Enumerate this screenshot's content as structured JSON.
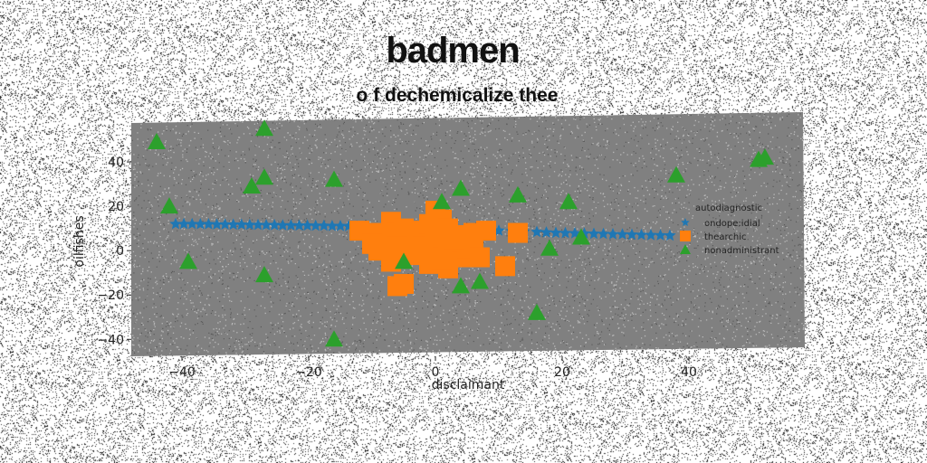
{
  "chart_data": {
    "type": "scatter",
    "title": "badmen",
    "subtitle": "o f dechemicalize thee",
    "xlabel": "disclaimant",
    "ylabel": "oilfishes",
    "xlim": [
      -48,
      58
    ],
    "ylim": [
      -46,
      60
    ],
    "xticks": [
      -40,
      -20,
      0,
      20,
      40
    ],
    "yticks": [
      -40,
      -20,
      0,
      20,
      40
    ],
    "grid": false,
    "legend": {
      "title": "autodiagnostic",
      "placement": "right"
    },
    "series": [
      {
        "name": "ondope:idial",
        "marker": "star",
        "color": "#1f77b4",
        "points": [
          [
            -41,
            12
          ],
          [
            -39.7,
            12
          ],
          [
            -38.4,
            12
          ],
          [
            -37.1,
            11.9
          ],
          [
            -35.8,
            11.9
          ],
          [
            -34.5,
            11.8
          ],
          [
            -33.2,
            11.8
          ],
          [
            -31.9,
            11.7
          ],
          [
            -30.6,
            11.7
          ],
          [
            -29.3,
            11.6
          ],
          [
            -28,
            11.6
          ],
          [
            -26.7,
            11.5
          ],
          [
            -25.4,
            11.5
          ],
          [
            -24.1,
            11.4
          ],
          [
            -22.8,
            11.4
          ],
          [
            -21.5,
            11.3
          ],
          [
            -20.2,
            11.3
          ],
          [
            -18.9,
            11.2
          ],
          [
            -17.6,
            11.2
          ],
          [
            -16.3,
            11.1
          ],
          [
            -15,
            11.1
          ],
          [
            -13.7,
            11
          ],
          [
            -12.4,
            11
          ],
          [
            -11.1,
            10.9
          ],
          [
            5.5,
            9.5
          ],
          [
            8,
            9.2
          ],
          [
            10,
            9
          ],
          [
            12,
            8.8
          ],
          [
            14,
            8.6
          ],
          [
            16,
            8.4
          ],
          [
            17.5,
            8.2
          ],
          [
            19,
            8
          ],
          [
            20.5,
            7.9
          ],
          [
            22,
            7.8
          ],
          [
            23.5,
            7.7
          ],
          [
            25,
            7.6
          ],
          [
            26.5,
            7.5
          ],
          [
            28,
            7.4
          ],
          [
            29.5,
            7.3
          ],
          [
            31,
            7.2
          ],
          [
            32.5,
            7.1
          ],
          [
            34,
            7.0
          ],
          [
            35.5,
            6.9
          ],
          [
            37,
            6.8
          ]
        ]
      },
      {
        "name": "thearchic",
        "marker": "square",
        "color": "#ff7f0e",
        "points": [
          [
            -12,
            9
          ],
          [
            -10,
            8
          ],
          [
            -8,
            7
          ],
          [
            -7,
            13
          ],
          [
            -6,
            8
          ],
          [
            -5,
            10
          ],
          [
            -4,
            4
          ],
          [
            -3,
            6
          ],
          [
            -2,
            9
          ],
          [
            -1,
            12
          ],
          [
            0,
            18
          ],
          [
            1,
            14
          ],
          [
            0,
            4
          ],
          [
            -1,
            -3
          ],
          [
            -3,
            -2
          ],
          [
            -6,
            2
          ],
          [
            -7,
            -5
          ],
          [
            -9,
            0
          ],
          [
            -10,
            3
          ],
          [
            2,
            2
          ],
          [
            3,
            7
          ],
          [
            4,
            -3
          ],
          [
            4,
            4
          ],
          [
            5,
            1
          ],
          [
            6,
            2
          ],
          [
            7,
            -3
          ],
          [
            8,
            9
          ],
          [
            2,
            -8
          ],
          [
            -1,
            -6
          ],
          [
            1,
            -4
          ],
          [
            -6,
            -16
          ],
          [
            -5,
            -15
          ],
          [
            11,
            -7
          ],
          [
            13,
            8
          ],
          [
            3,
            5
          ],
          [
            -2,
            2
          ],
          [
            0,
            7
          ],
          [
            -4,
            -1
          ],
          [
            2,
            10
          ],
          [
            6,
            8
          ]
        ]
      },
      {
        "name": "nonadministrant",
        "marker": "triangle",
        "color": "#2ca02c",
        "points": [
          [
            -44,
            49
          ],
          [
            -42,
            20
          ],
          [
            -39,
            -5
          ],
          [
            -27,
            55
          ],
          [
            -27,
            33
          ],
          [
            -29,
            29
          ],
          [
            -27,
            -11
          ],
          [
            -16,
            32
          ],
          [
            -16,
            -40
          ],
          [
            -5,
            -5
          ],
          [
            1,
            22
          ],
          [
            4,
            28
          ],
          [
            4,
            -16
          ],
          [
            7,
            -14
          ],
          [
            13,
            25
          ],
          [
            16,
            -28
          ],
          [
            18,
            1
          ],
          [
            21,
            22
          ],
          [
            23,
            6
          ],
          [
            38,
            34
          ],
          [
            51,
            41
          ],
          [
            52,
            42
          ]
        ]
      }
    ]
  }
}
